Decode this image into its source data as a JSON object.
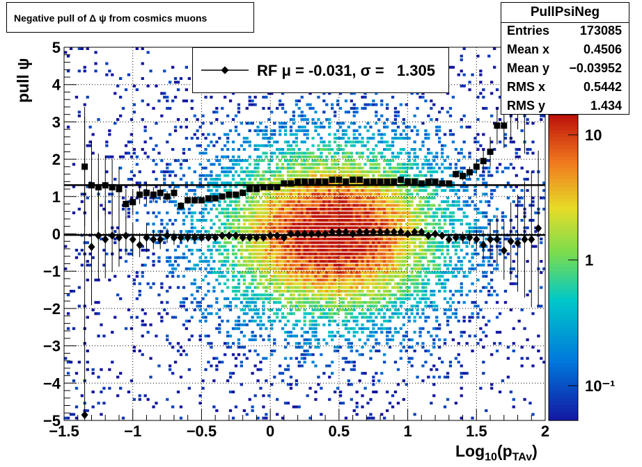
{
  "title": "Negative pull of Δ ψ from cosmics muons",
  "stats": {
    "name": "PullPsiNeg",
    "rows": [
      {
        "key": "Entries",
        "value": "173085"
      },
      {
        "key": "Mean x",
        "value": "0.4506"
      },
      {
        "key": "Mean y",
        "value": "−0.03952"
      },
      {
        "key": "RMS x",
        "value": "0.5442"
      },
      {
        "key": "RMS y",
        "value": "1.434"
      }
    ]
  },
  "legend": {
    "text": "RF μ = -0.031, σ =   1.305"
  },
  "axes": {
    "xlabel_main": "Log",
    "xlabel_sub1": "10",
    "xlabel_mid": "(p",
    "xlabel_sub2": "TAv",
    "xlabel_end": ")",
    "ylabel": "pull ψ"
  },
  "chart_data": {
    "type": "scatter",
    "xlim": [
      -1.5,
      2
    ],
    "ylim": [
      -5,
      5
    ],
    "z_scale": "log",
    "z_ticks": [
      "10",
      "1",
      "10⁻¹"
    ],
    "x_ticks": [
      "−1.5",
      "−1",
      "−0.5",
      "0",
      "0.5",
      "1",
      "1.5",
      "2"
    ],
    "y_ticks": [
      "−5",
      "−4",
      "−3",
      "−2",
      "−1",
      "0",
      "1",
      "2",
      "3",
      "4",
      "5"
    ],
    "grid": true,
    "hlines": [
      1.305,
      -0.031
    ],
    "background": "2D density histogram (rainbow palette)",
    "series": [
      {
        "values_x": [
          -1.35,
          -1.3,
          -1.25,
          -1.2,
          -1.15,
          -1.1,
          -1.05,
          -1.0,
          -0.95,
          -0.9,
          -0.85,
          -0.8,
          -0.75,
          -0.7,
          -0.65,
          -0.6,
          -0.55,
          -0.5,
          -0.45,
          -0.4,
          -0.35,
          -0.3,
          -0.25,
          -0.2,
          -0.15,
          -0.1,
          -0.05,
          0.0,
          0.05,
          0.1,
          0.15,
          0.2,
          0.25,
          0.3,
          0.35,
          0.4,
          0.45,
          0.5,
          0.55,
          0.6,
          0.65,
          0.7,
          0.75,
          0.8,
          0.85,
          0.9,
          0.95,
          1.0,
          1.05,
          1.1,
          1.15,
          1.2,
          1.25,
          1.3,
          1.35,
          1.4,
          1.45,
          1.5,
          1.55,
          1.6,
          1.65,
          1.7,
          1.75,
          1.8,
          1.85,
          1.9,
          1.95
        ],
        "values_y": [
          1.8,
          1.3,
          1.25,
          1.3,
          1.25,
          1.2,
          0.8,
          0.85,
          1.05,
          1.1,
          1.05,
          1.1,
          1.0,
          1.1,
          0.75,
          0.9,
          0.9,
          0.9,
          0.95,
          0.95,
          1.0,
          1.05,
          1.05,
          1.1,
          1.2,
          1.2,
          1.25,
          1.25,
          1.25,
          1.35,
          1.35,
          1.4,
          1.4,
          1.4,
          1.4,
          1.4,
          1.45,
          1.45,
          1.4,
          1.45,
          1.45,
          1.4,
          1.4,
          1.4,
          1.4,
          1.4,
          1.45,
          1.4,
          1.4,
          1.35,
          1.4,
          1.4,
          1.35,
          1.35,
          1.6,
          1.55,
          1.65,
          1.8,
          1.95,
          2.2,
          2.9,
          2.9,
          3.3,
          3.8,
          3.35,
          5.0,
          5.0
        ]
      },
      {
        "values_x": [
          -1.35,
          -1.3,
          -1.25,
          -1.2,
          -1.15,
          -1.1,
          -1.05,
          -1.0,
          -0.95,
          -0.9,
          -0.85,
          -0.8,
          -0.75,
          -0.7,
          -0.65,
          -0.6,
          -0.55,
          -0.5,
          -0.45,
          -0.4,
          -0.35,
          -0.3,
          -0.25,
          -0.2,
          -0.15,
          -0.1,
          -0.05,
          0.0,
          0.05,
          0.1,
          0.15,
          0.2,
          0.25,
          0.3,
          0.35,
          0.4,
          0.45,
          0.5,
          0.55,
          0.6,
          0.65,
          0.7,
          0.75,
          0.8,
          0.85,
          0.9,
          0.95,
          1.0,
          1.05,
          1.1,
          1.15,
          1.2,
          1.25,
          1.3,
          1.35,
          1.4,
          1.45,
          1.5,
          1.55,
          1.6,
          1.65,
          1.7,
          1.75,
          1.8,
          1.85,
          1.9,
          1.95
        ],
        "values_y": [
          -4.85,
          -0.35,
          -0.05,
          -0.15,
          -0.05,
          -0.1,
          -0.05,
          -0.15,
          -0.3,
          -0.1,
          -0.15,
          -0.15,
          -0.05,
          -0.1,
          -0.1,
          -0.1,
          -0.1,
          -0.1,
          -0.1,
          -0.1,
          -0.05,
          -0.05,
          -0.05,
          -0.1,
          -0.1,
          -0.1,
          -0.1,
          -0.05,
          -0.05,
          -0.1,
          0.0,
          0.0,
          0.0,
          0.0,
          0.0,
          0.0,
          0.05,
          0.05,
          0.05,
          0.0,
          0.05,
          0.05,
          0.05,
          0.05,
          0.05,
          0.05,
          0.05,
          0.0,
          0.05,
          0.05,
          -0.05,
          0.0,
          -0.05,
          -0.15,
          -0.1,
          -0.1,
          -0.1,
          -0.15,
          -0.3,
          -0.15,
          -0.15,
          -0.45,
          -0.2,
          -0.25,
          -0.15,
          -0.15,
          0.15
        ]
      }
    ]
  }
}
